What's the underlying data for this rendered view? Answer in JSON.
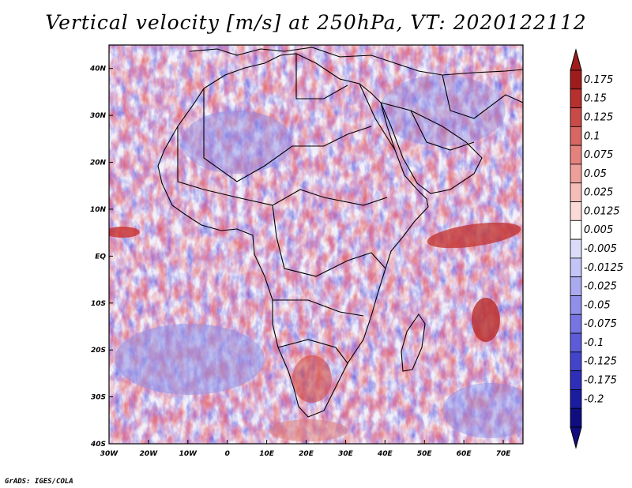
{
  "title": "Vertical velocity [m/s] at 250hPa, VT: 2020122112",
  "credit": "GrADS: IGES/COLA",
  "map": {
    "lon_range": [
      -30,
      75
    ],
    "lat_range": [
      -40,
      45
    ],
    "lon_ticks": [
      "30W",
      "20W",
      "10W",
      "0",
      "10E",
      "20E",
      "30E",
      "40E",
      "50E",
      "60E",
      "70E"
    ],
    "lat_ticks": [
      "40N",
      "30N",
      "20N",
      "10N",
      "EQ",
      "10S",
      "20S",
      "30S",
      "40S"
    ],
    "field": "vertical velocity",
    "units": "m/s",
    "level": "250hPa"
  },
  "colorbar": {
    "labels": [
      "0.175",
      "0.15",
      "0.125",
      "0.1",
      "0.075",
      "0.05",
      "0.025",
      "0.0125",
      "0.005",
      "-0.005",
      "-0.0125",
      "-0.025",
      "-0.05",
      "-0.075",
      "-0.1",
      "-0.125",
      "-0.175",
      "-0.2"
    ],
    "colors": [
      "#a01c1c",
      "#b8302e",
      "#c84b47",
      "#d86662",
      "#e4837d",
      "#ee9f99",
      "#f5bdb8",
      "#fadad6",
      "#ffffff",
      "#dcdcfa",
      "#c4c4f6",
      "#aaaaf0",
      "#9090ea",
      "#7676e2",
      "#5c5cd8",
      "#4444ca",
      "#2e2eb8",
      "#1c1ca0",
      "#0e0e80"
    ]
  }
}
